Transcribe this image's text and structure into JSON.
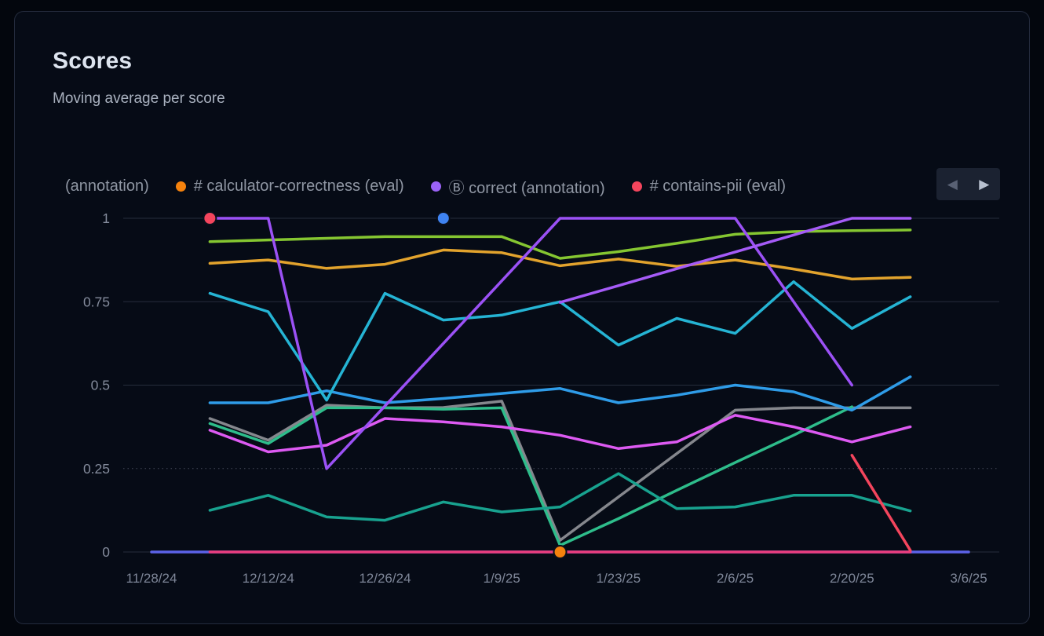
{
  "card": {
    "title": "Scores",
    "subtitle": "Moving average per score"
  },
  "legend": {
    "items": [
      {
        "label": "(annotation)",
        "dot_color": ""
      },
      {
        "label": "# calculator-correctness (eval)",
        "dot_color": "#f5820d"
      },
      {
        "label": "Ⓑ correct (annotation)",
        "dot_color": "#9b63f6"
      },
      {
        "label": "# contains-pii (eval)",
        "dot_color": "#f4455d"
      }
    ],
    "prev_label": "◀",
    "next_label": "▶"
  },
  "chart_data": {
    "type": "line",
    "title": "Scores",
    "subtitle": "Moving average per score",
    "x_tick_labels": [
      "11/28/24",
      "12/12/24",
      "12/26/24",
      "1/9/25",
      "1/23/25",
      "2/6/25",
      "2/20/25",
      "3/6/25"
    ],
    "x_tick_weeks": [
      0,
      2,
      4,
      6,
      8,
      10,
      12,
      14
    ],
    "y_ticks": [
      {
        "label": "1",
        "value": 1
      },
      {
        "label": "0.75",
        "value": 0.75
      },
      {
        "label": "0.5",
        "value": 0.5
      },
      {
        "label": "0.25",
        "value": 0.25
      },
      {
        "label": "0",
        "value": 0
      }
    ],
    "ylim": [
      0,
      1
    ],
    "grid": "horizontal-only",
    "dashed_gridline_value": 0.25,
    "legend_position": "top",
    "series": [
      {
        "id": "flat-zero-indigo",
        "color": "#5c63e8",
        "points": [
          [
            0,
            0
          ],
          [
            14,
            0
          ]
        ]
      },
      {
        "id": "flat-zero-pink",
        "color": "#ea3d7e",
        "points": [
          [
            1,
            0
          ],
          [
            13,
            0
          ]
        ]
      },
      {
        "id": "gray",
        "color": "#85878d",
        "points": [
          [
            1,
            0.4
          ],
          [
            2,
            0.335
          ],
          [
            3,
            0.44
          ],
          [
            4,
            0.432
          ],
          [
            5,
            0.433
          ],
          [
            6,
            0.452
          ],
          [
            7,
            0.035
          ],
          [
            8,
            0.165
          ],
          [
            9,
            0.295
          ],
          [
            10,
            0.425
          ],
          [
            11,
            0.432
          ],
          [
            12,
            0.432
          ],
          [
            13,
            0.432
          ]
        ]
      },
      {
        "id": "emerald",
        "color": "#2ebd8b",
        "points": [
          [
            1,
            0.385
          ],
          [
            2,
            0.325
          ],
          [
            3,
            0.432
          ],
          [
            4,
            0.432
          ],
          [
            5,
            0.428
          ],
          [
            6,
            0.432
          ],
          [
            7,
            0.02
          ],
          [
            8,
            0.1
          ],
          [
            9,
            0.185
          ],
          [
            10,
            0.268
          ],
          [
            11,
            0.35
          ],
          [
            12,
            0.435
          ]
        ]
      },
      {
        "id": "teal",
        "color": "#18a28f",
        "points": [
          [
            1,
            0.125
          ],
          [
            2,
            0.17
          ],
          [
            3,
            0.105
          ],
          [
            4,
            0.095
          ],
          [
            5,
            0.15
          ],
          [
            6,
            0.12
          ],
          [
            7,
            0.135
          ],
          [
            8,
            0.235
          ],
          [
            9,
            0.13
          ],
          [
            10,
            0.135
          ],
          [
            11,
            0.17
          ],
          [
            12,
            0.17
          ],
          [
            13,
            0.123
          ]
        ]
      },
      {
        "id": "magenta",
        "color": "#dd5af2",
        "points": [
          [
            1,
            0.365
          ],
          [
            2,
            0.3
          ],
          [
            3,
            0.32
          ],
          [
            4,
            0.4
          ],
          [
            5,
            0.39
          ],
          [
            6,
            0.375
          ],
          [
            7,
            0.35
          ],
          [
            8,
            0.31
          ],
          [
            9,
            0.33
          ],
          [
            10,
            0.41
          ],
          [
            11,
            0.375
          ],
          [
            12,
            0.33
          ],
          [
            13,
            0.375
          ]
        ]
      },
      {
        "id": "light-blue",
        "color": "#2f9ce8",
        "points": [
          [
            1,
            0.447
          ],
          [
            2,
            0.447
          ],
          [
            3,
            0.483
          ],
          [
            4,
            0.447
          ],
          [
            5,
            0.46
          ],
          [
            6,
            0.475
          ],
          [
            7,
            0.49
          ],
          [
            8,
            0.447
          ],
          [
            9,
            0.47
          ],
          [
            10,
            0.5
          ],
          [
            11,
            0.48
          ],
          [
            12,
            0.425
          ],
          [
            13,
            0.525
          ]
        ]
      },
      {
        "id": "cyan",
        "color": "#25b4d4",
        "points": [
          [
            1,
            0.775
          ],
          [
            2,
            0.72
          ],
          [
            3,
            0.455
          ],
          [
            4,
            0.775
          ],
          [
            5,
            0.695
          ],
          [
            6,
            0.71
          ],
          [
            7,
            0.75
          ],
          [
            8,
            0.62
          ],
          [
            9,
            0.7
          ],
          [
            10,
            0.655
          ],
          [
            11,
            0.81
          ],
          [
            12,
            0.67
          ],
          [
            13,
            0.765
          ]
        ]
      },
      {
        "id": "amber",
        "color": "#e2a32d",
        "points": [
          [
            1,
            0.865
          ],
          [
            2,
            0.875
          ],
          [
            3,
            0.85
          ],
          [
            4,
            0.862
          ],
          [
            5,
            0.905
          ],
          [
            6,
            0.897
          ],
          [
            7,
            0.858
          ],
          [
            8,
            0.878
          ],
          [
            9,
            0.856
          ],
          [
            10,
            0.875
          ],
          [
            11,
            0.848
          ],
          [
            12,
            0.818
          ],
          [
            13,
            0.823
          ]
        ]
      },
      {
        "id": "lime",
        "color": "#85c631",
        "points": [
          [
            1,
            0.93
          ],
          [
            2,
            0.935
          ],
          [
            3,
            0.94
          ],
          [
            4,
            0.945
          ],
          [
            5,
            0.945
          ],
          [
            6,
            0.945
          ],
          [
            7,
            0.88
          ],
          [
            8,
            0.9
          ],
          [
            9,
            0.925
          ],
          [
            10,
            0.952
          ],
          [
            11,
            0.96
          ],
          [
            12,
            0.963
          ],
          [
            13,
            0.965
          ]
        ]
      },
      {
        "id": "purple",
        "color": "#9b51f5",
        "points": [
          [
            1,
            1
          ],
          [
            2,
            1
          ],
          [
            3,
            0.25
          ],
          [
            4,
            0.4375
          ],
          [
            5,
            0.625
          ],
          [
            6,
            0.8125
          ],
          [
            7,
            1
          ],
          [
            8,
            1
          ],
          [
            9,
            1
          ],
          [
            10,
            1
          ],
          [
            11,
            0.75
          ],
          [
            12,
            0.5
          ]
        ]
      },
      {
        "id": "violet",
        "color": "#a55bf7",
        "points": [
          [
            7,
            0.748
          ],
          [
            8,
            0.798
          ],
          [
            9,
            0.849
          ],
          [
            10,
            0.899
          ],
          [
            11,
            0.95
          ],
          [
            12,
            1.0
          ],
          [
            13,
            1.0
          ]
        ]
      },
      {
        "id": "red",
        "color": "#f4455d",
        "points": [
          [
            12,
            0.29
          ],
          [
            13,
            0.005
          ]
        ]
      }
    ],
    "markers": [
      {
        "id": "red-point",
        "color": "#f4455d",
        "week": 1,
        "value": 1
      },
      {
        "id": "blue-point",
        "color": "#3f83f1",
        "week": 5,
        "value": 1
      },
      {
        "id": "orange-point",
        "color": "#f5820d",
        "week": 7,
        "value": 0
      }
    ]
  }
}
